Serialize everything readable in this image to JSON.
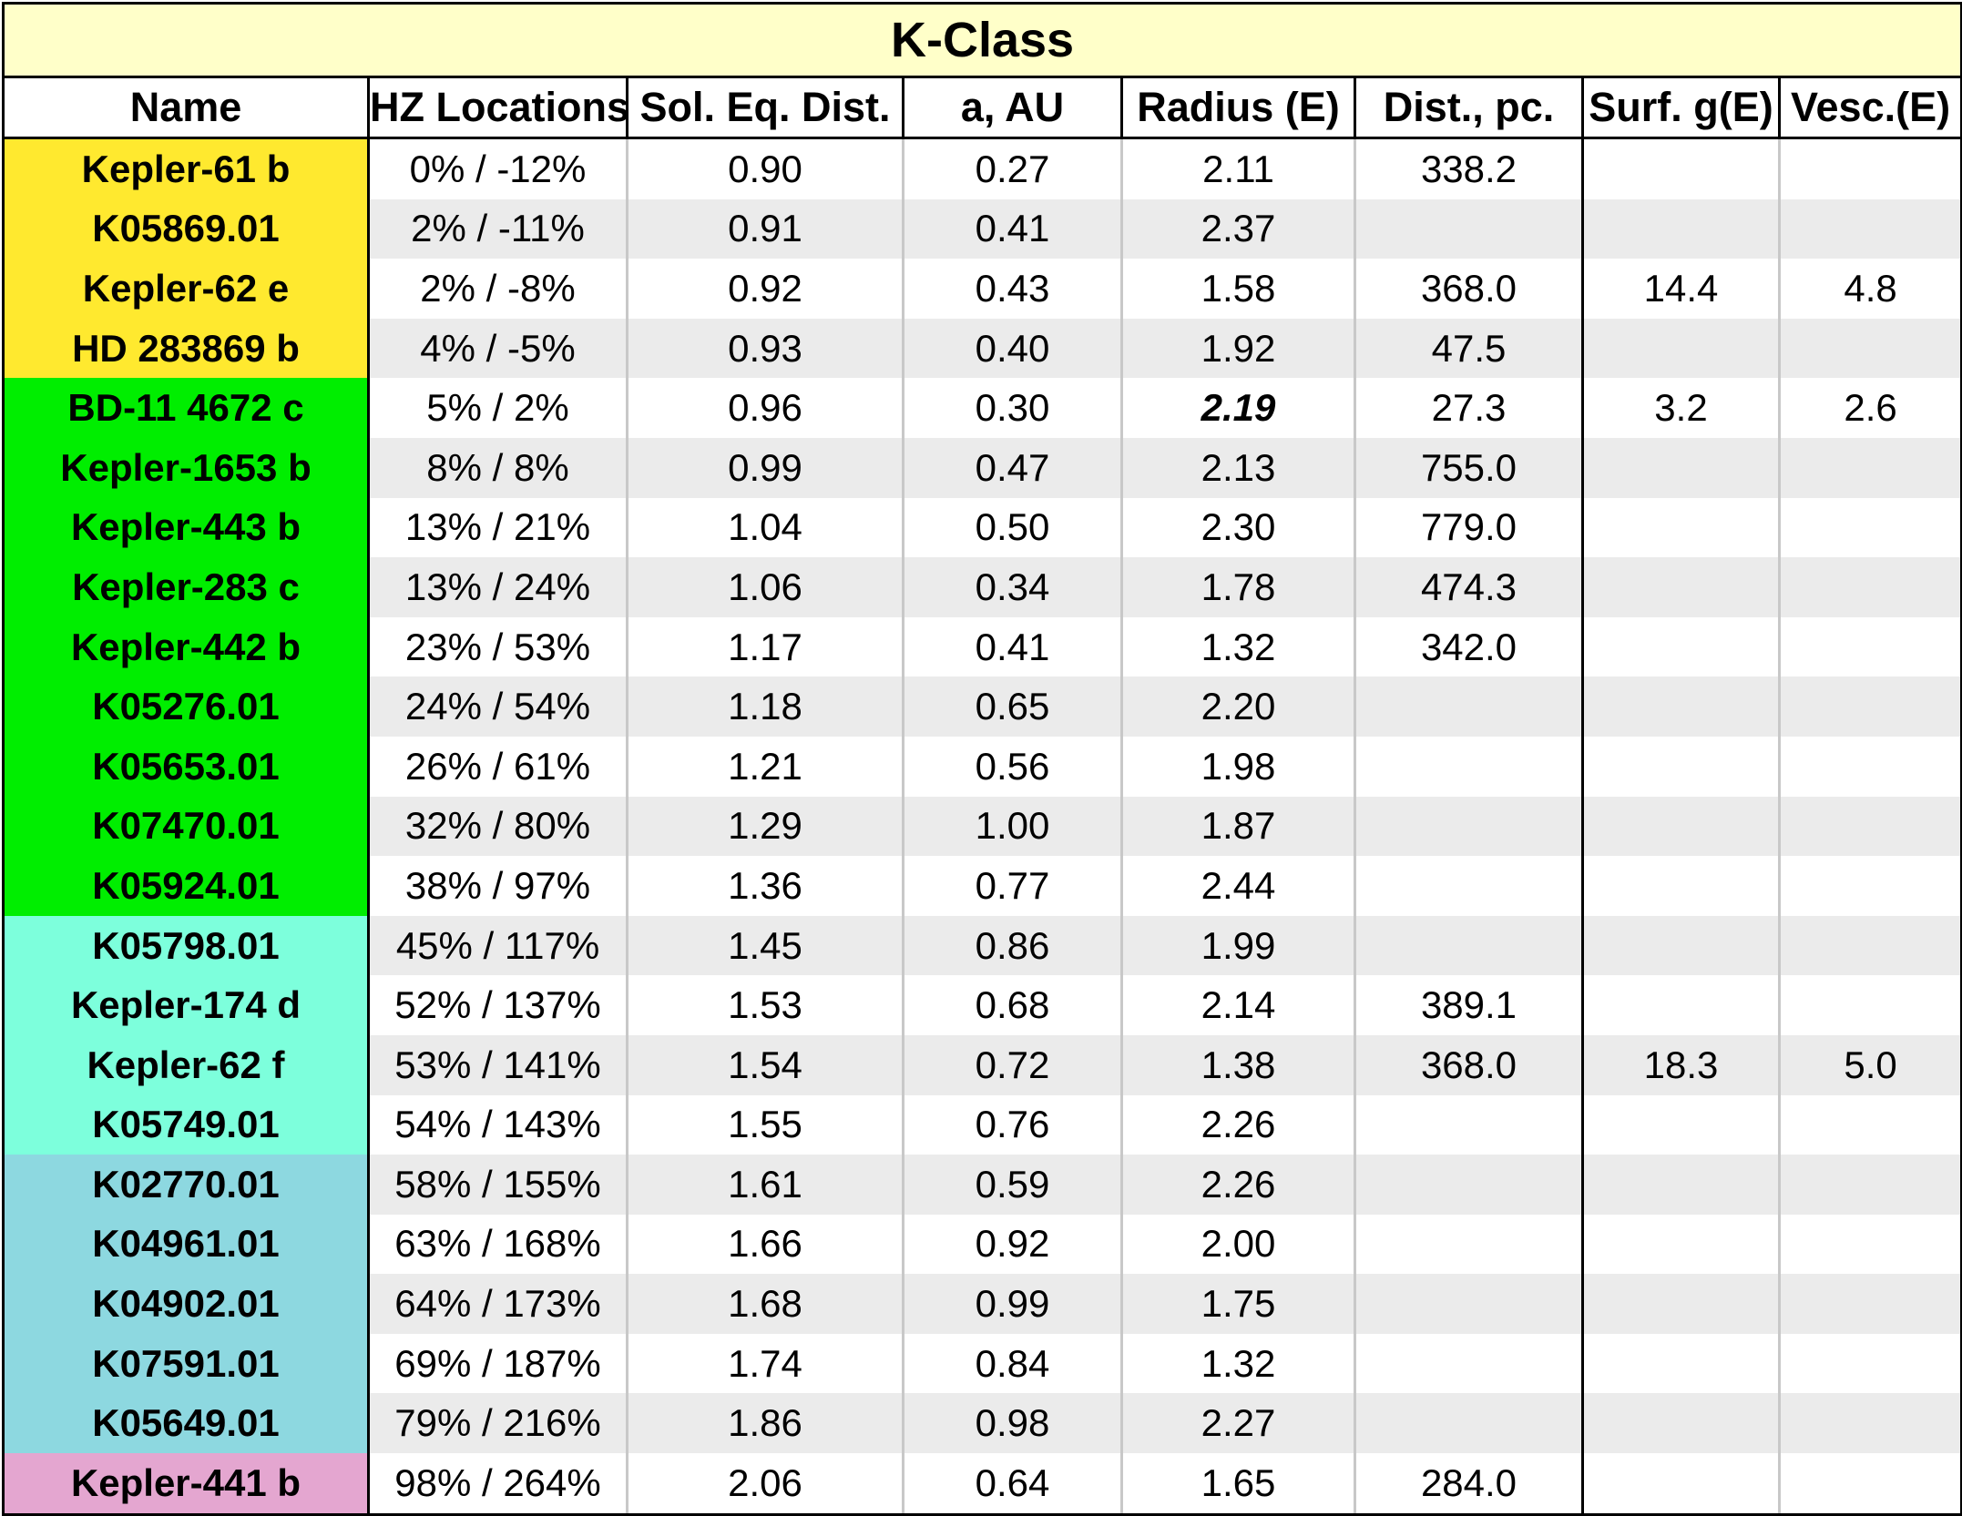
{
  "title": "K-Class",
  "headers": [
    "Name",
    "HZ Locations",
    "Sol. Eq. Dist.",
    "a, AU",
    "Radius (E)",
    "Dist., pc.",
    "Surf. g(E)",
    "Vesc.(E)"
  ],
  "group_colors": {
    "yellow": "#ffe92f",
    "green": "#00ee00",
    "aqua": "#7dffdc",
    "teal": "#8dd8e0",
    "pink": "#e4a6d0"
  },
  "rows": [
    {
      "name": "Kepler-61 b",
      "group": "yellow",
      "hz": "0% / -12%",
      "sol": "0.90",
      "a": "0.27",
      "radius": "2.11",
      "dist": "338.2",
      "surf": "",
      "vesc": ""
    },
    {
      "name": "K05869.01",
      "group": "yellow",
      "hz": "2% / -11%",
      "sol": "0.91",
      "a": "0.41",
      "radius": "2.37",
      "dist": "",
      "surf": "",
      "vesc": ""
    },
    {
      "name": "Kepler-62 e",
      "group": "yellow",
      "hz": "2% / -8%",
      "sol": "0.92",
      "a": "0.43",
      "radius": "1.58",
      "dist": "368.0",
      "surf": "14.4",
      "vesc": "4.8"
    },
    {
      "name": "HD 283869 b",
      "group": "yellow",
      "hz": "4% / -5%",
      "sol": "0.93",
      "a": "0.40",
      "radius": "1.92",
      "dist": "47.5",
      "surf": "",
      "vesc": ""
    },
    {
      "name": "BD-11 4672 c",
      "group": "green",
      "hz": "5% / 2%",
      "sol": "0.96",
      "a": "0.30",
      "radius": "2.19",
      "radius_emphasis": true,
      "dist": "27.3",
      "surf": "3.2",
      "vesc": "2.6"
    },
    {
      "name": "Kepler-1653 b",
      "group": "green",
      "hz": "8% / 8%",
      "sol": "0.99",
      "a": "0.47",
      "radius": "2.13",
      "dist": "755.0",
      "surf": "",
      "vesc": ""
    },
    {
      "name": "Kepler-443 b",
      "group": "green",
      "hz": "13% / 21%",
      "sol": "1.04",
      "a": "0.50",
      "radius": "2.30",
      "dist": "779.0",
      "surf": "",
      "vesc": ""
    },
    {
      "name": "Kepler-283 c",
      "group": "green",
      "hz": "13% / 24%",
      "sol": "1.06",
      "a": "0.34",
      "radius": "1.78",
      "dist": "474.3",
      "surf": "",
      "vesc": ""
    },
    {
      "name": "Kepler-442 b",
      "group": "green",
      "hz": "23% / 53%",
      "sol": "1.17",
      "a": "0.41",
      "radius": "1.32",
      "dist": "342.0",
      "surf": "",
      "vesc": ""
    },
    {
      "name": "K05276.01",
      "group": "green",
      "hz": "24% / 54%",
      "sol": "1.18",
      "a": "0.65",
      "radius": "2.20",
      "dist": "",
      "surf": "",
      "vesc": ""
    },
    {
      "name": "K05653.01",
      "group": "green",
      "hz": "26% / 61%",
      "sol": "1.21",
      "a": "0.56",
      "radius": "1.98",
      "dist": "",
      "surf": "",
      "vesc": ""
    },
    {
      "name": "K07470.01",
      "group": "green",
      "hz": "32% / 80%",
      "sol": "1.29",
      "a": "1.00",
      "radius": "1.87",
      "dist": "",
      "surf": "",
      "vesc": ""
    },
    {
      "name": "K05924.01",
      "group": "green",
      "hz": "38% / 97%",
      "sol": "1.36",
      "a": "0.77",
      "radius": "2.44",
      "dist": "",
      "surf": "",
      "vesc": ""
    },
    {
      "name": "K05798.01",
      "group": "aqua",
      "hz": "45% / 117%",
      "sol": "1.45",
      "a": "0.86",
      "radius": "1.99",
      "dist": "",
      "surf": "",
      "vesc": ""
    },
    {
      "name": "Kepler-174 d",
      "group": "aqua",
      "hz": "52% / 137%",
      "sol": "1.53",
      "a": "0.68",
      "radius": "2.14",
      "dist": "389.1",
      "surf": "",
      "vesc": ""
    },
    {
      "name": "Kepler-62 f",
      "group": "aqua",
      "hz": "53% / 141%",
      "sol": "1.54",
      "a": "0.72",
      "radius": "1.38",
      "dist": "368.0",
      "surf": "18.3",
      "vesc": "5.0"
    },
    {
      "name": "K05749.01",
      "group": "aqua",
      "hz": "54% / 143%",
      "sol": "1.55",
      "a": "0.76",
      "radius": "2.26",
      "dist": "",
      "surf": "",
      "vesc": ""
    },
    {
      "name": "K02770.01",
      "group": "teal",
      "hz": "58% / 155%",
      "sol": "1.61",
      "a": "0.59",
      "radius": "2.26",
      "dist": "",
      "surf": "",
      "vesc": ""
    },
    {
      "name": "K04961.01",
      "group": "teal",
      "hz": "63% / 168%",
      "sol": "1.66",
      "a": "0.92",
      "radius": "2.00",
      "dist": "",
      "surf": "",
      "vesc": ""
    },
    {
      "name": "K04902.01",
      "group": "teal",
      "hz": "64% / 173%",
      "sol": "1.68",
      "a": "0.99",
      "radius": "1.75",
      "dist": "",
      "surf": "",
      "vesc": ""
    },
    {
      "name": "K07591.01",
      "group": "teal",
      "hz": "69% / 187%",
      "sol": "1.74",
      "a": "0.84",
      "radius": "1.32",
      "dist": "",
      "surf": "",
      "vesc": ""
    },
    {
      "name": "K05649.01",
      "group": "teal",
      "hz": "79% / 216%",
      "sol": "1.86",
      "a": "0.98",
      "radius": "2.27",
      "dist": "",
      "surf": "",
      "vesc": ""
    },
    {
      "name": "Kepler-441 b",
      "group": "pink",
      "hz": "98% / 264%",
      "sol": "2.06",
      "a": "0.64",
      "radius": "1.65",
      "dist": "284.0",
      "surf": "",
      "vesc": ""
    }
  ]
}
